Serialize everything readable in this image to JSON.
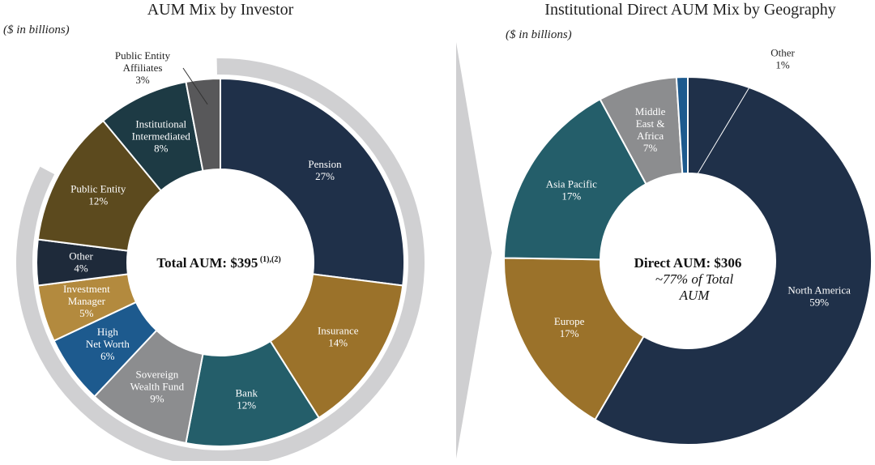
{
  "chart_data": [
    {
      "type": "pie",
      "title": "AUM Mix by Investor",
      "unit_note": "($ in billions)",
      "center_label": "Total AUM: $395",
      "center_superscript": "(1),(2)",
      "slices": [
        {
          "name": "Pension",
          "lines": [
            "Pension",
            "27%"
          ],
          "value": 27,
          "color": "#1f3049",
          "text_color": "#ffffff"
        },
        {
          "name": "Insurance",
          "lines": [
            "Insurance",
            "14%"
          ],
          "value": 14,
          "color": "#9b722a",
          "text_color": "#ffffff"
        },
        {
          "name": "Bank",
          "lines": [
            "Bank",
            "12%"
          ],
          "value": 12,
          "color": "#245e6a",
          "text_color": "#ffffff"
        },
        {
          "name": "Sovereign Wealth Fund",
          "lines": [
            "Sovereign",
            "Wealth Fund",
            "9%"
          ],
          "value": 9,
          "color": "#8c8d8f",
          "text_color": "#ffffff"
        },
        {
          "name": "High Net Worth",
          "lines": [
            "High",
            "Net Worth",
            "6%"
          ],
          "value": 6,
          "color": "#1d5a8e",
          "text_color": "#ffffff"
        },
        {
          "name": "Investment Manager",
          "lines": [
            "Investment",
            "Manager",
            "5%"
          ],
          "value": 5,
          "color": "#b38a3e",
          "text_color": "#ffffff"
        },
        {
          "name": "Other",
          "lines": [
            "Other",
            "4%"
          ],
          "value": 4,
          "color": "#1e2a3a",
          "text_color": "#ffffff"
        },
        {
          "name": "Public Entity",
          "lines": [
            "Public Entity",
            "12%"
          ],
          "value": 12,
          "color": "#5c4a1e",
          "text_color": "#ffffff"
        },
        {
          "name": "Institutional Intermediated",
          "lines": [
            "Institutional",
            "Intermediated",
            "8%"
          ],
          "value": 8,
          "color": "#1d3a44",
          "text_color": "#ffffff"
        },
        {
          "name": "Public Entity Affiliates",
          "lines": [
            "Public Entity",
            "Affiliates",
            "3%"
          ],
          "value": 3,
          "color": "#58585a",
          "text_color": "#222222",
          "outside_label": true
        }
      ]
    },
    {
      "type": "pie",
      "title": "Institutional Direct AUM Mix by Geography",
      "unit_note": "($ in billions)",
      "center_label": "Direct AUM: $306",
      "center_sublabel": [
        "~77% of Total",
        "AUM"
      ],
      "slices": [
        {
          "name": "North America",
          "lines": [
            "North America",
            "59%"
          ],
          "value": 59,
          "color": "#1f3049",
          "text_color": "#ffffff"
        },
        {
          "name": "Europe",
          "lines": [
            "Europe",
            "17%"
          ],
          "value": 17,
          "color": "#9b722a",
          "text_color": "#ffffff"
        },
        {
          "name": "Asia Pacific",
          "lines": [
            "Asia Pacific",
            "17%"
          ],
          "value": 17,
          "color": "#245e6a",
          "text_color": "#ffffff"
        },
        {
          "name": "Middle East & Africa",
          "lines": [
            "Middle",
            "East &",
            "Africa",
            "7%"
          ],
          "value": 7,
          "color": "#8c8d8f",
          "text_color": "#ffffff"
        },
        {
          "name": "Other",
          "lines": [
            "Other",
            "1%"
          ],
          "value": 1,
          "color": "#1d5a8e",
          "text_color": "#222222",
          "outside_label": true
        }
      ]
    }
  ],
  "colors": {
    "highlight_arc": "#d0d0d2",
    "arrow": "#cfcfd1",
    "leader_line_left": "#333333",
    "leader_line_right": "#ffffff"
  }
}
